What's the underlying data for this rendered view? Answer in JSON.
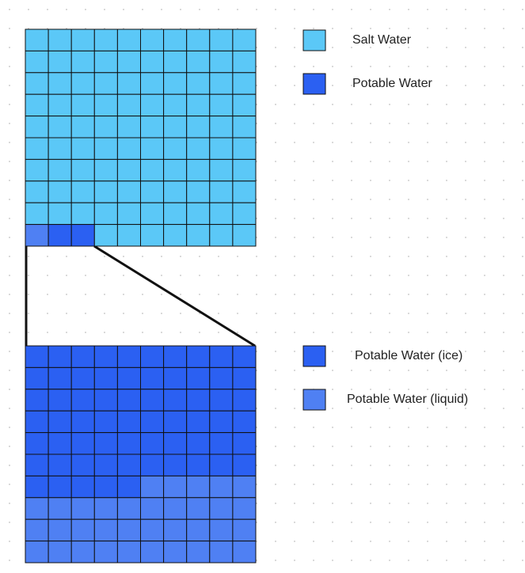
{
  "legend": [
    {
      "label": "Salt Water",
      "color": "#5bc8f7"
    },
    {
      "label": "Potable Water",
      "color": "#2b60f2"
    },
    {
      "label": "Potable Water (ice)",
      "color": "#2b60f2"
    },
    {
      "label": "Potable Water (liquid)",
      "color": "#4f80f3"
    }
  ],
  "grids": [
    {
      "columns": 10,
      "runs": [
        {
          "color": "#5bc8f7",
          "count": 90
        },
        {
          "color": "#4f80f3",
          "count": 1
        },
        {
          "color": "#2b60f2",
          "count": 2
        },
        {
          "color": "#5bc8f7",
          "count": 7
        }
      ]
    },
    {
      "columns": 10,
      "runs": [
        {
          "color": "#2b60f2",
          "count": 65
        },
        {
          "color": "#4f80f3",
          "count": 35
        }
      ]
    }
  ]
}
